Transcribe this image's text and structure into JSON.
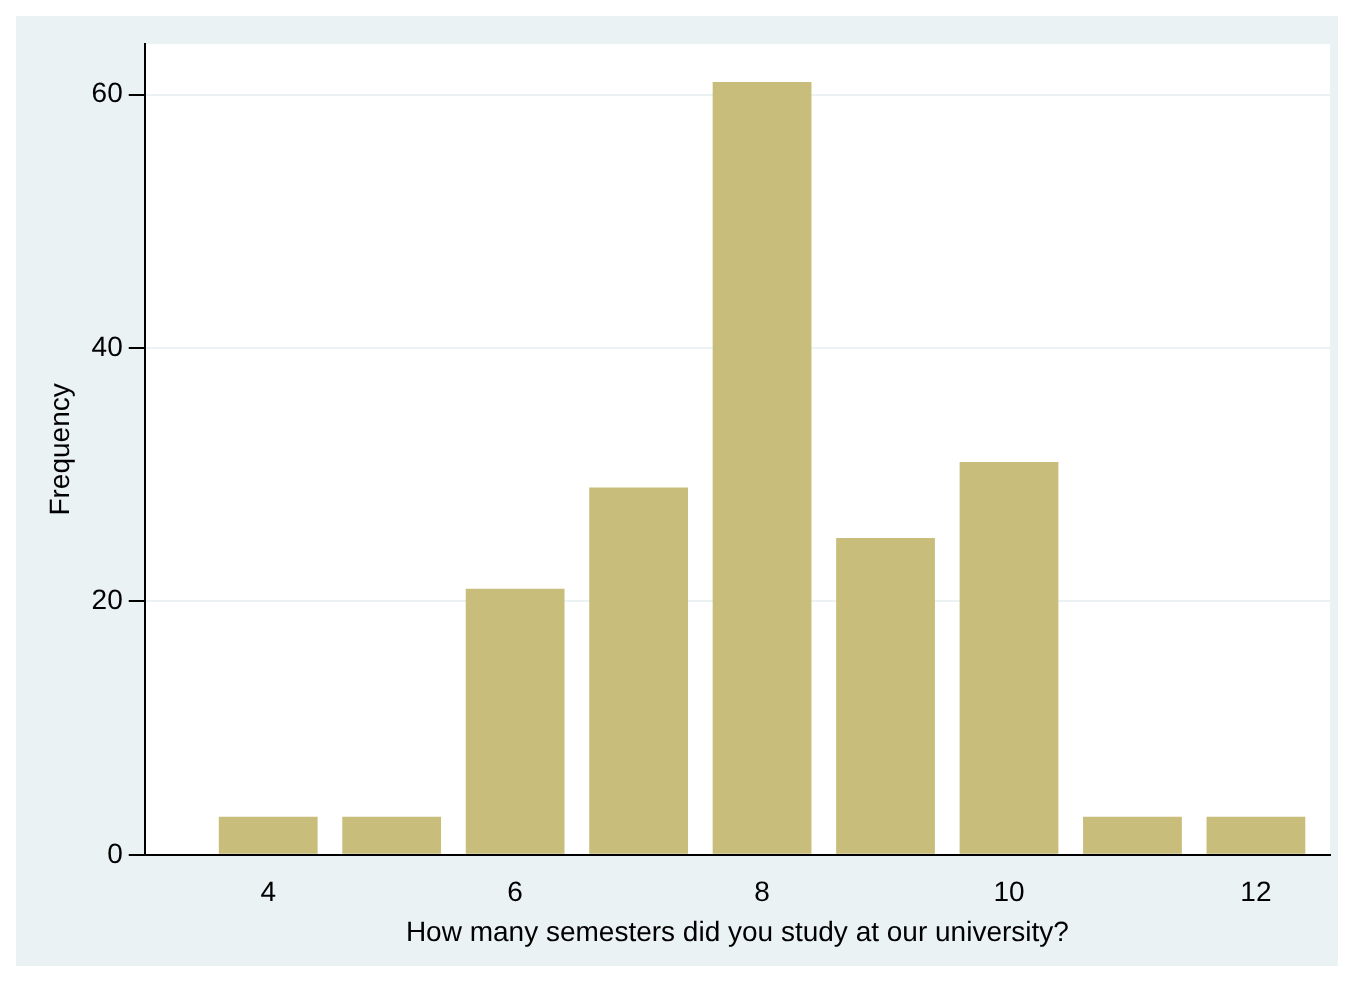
{
  "chart_data": {
    "type": "bar",
    "xlabel": "How many semesters did you study at our university?",
    "ylabel": "Frequency",
    "x": [
      4,
      5,
      6,
      7,
      8,
      9,
      10,
      11,
      12
    ],
    "values": [
      3,
      3,
      21,
      29,
      61,
      25,
      31,
      3,
      3
    ],
    "color": "#c8bd7a",
    "xlim": [
      3,
      12.6
    ],
    "xticks": [
      4,
      6,
      8,
      10,
      12
    ],
    "ylim": [
      0,
      64
    ],
    "yticks": [
      0,
      20,
      40,
      60
    ],
    "grid": "y"
  }
}
